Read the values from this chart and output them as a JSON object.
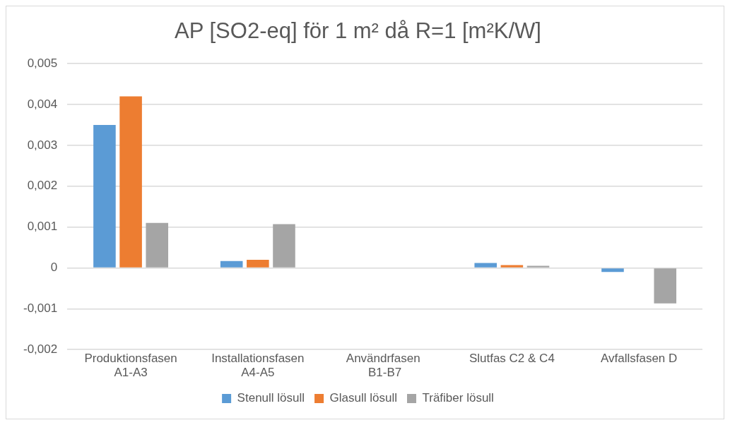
{
  "chart_data": {
    "type": "bar",
    "title": "AP [SO2-eq] för 1 m² då R=1 [m²K/W]",
    "categories": [
      "Produktionsfasen A1-A3",
      "Installationsfasen A4-A5",
      "Användrfasen  B1-B7",
      "Slutfas C2 & C4",
      "Avfallsfasen D"
    ],
    "series": [
      {
        "name": "Stenull lösull",
        "color": "#5b9bd5",
        "values": [
          0.0035,
          0.00017,
          0,
          0.00012,
          -0.0001
        ]
      },
      {
        "name": "Glasull lösull",
        "color": "#ed7d31",
        "values": [
          0.0042,
          0.0002,
          0,
          7e-05,
          0
        ]
      },
      {
        "name": "Träfiber lösull",
        "color": "#a5a5a5",
        "values": [
          0.0011,
          0.00107,
          0,
          5e-05,
          -0.00087
        ]
      }
    ],
    "ylim": [
      -0.002,
      0.005
    ],
    "yticks": [
      {
        "value": -0.002,
        "label": "-0,002"
      },
      {
        "value": -0.001,
        "label": "-0,001"
      },
      {
        "value": 0,
        "label": "0"
      },
      {
        "value": 0.001,
        "label": "0,001"
      },
      {
        "value": 0.002,
        "label": "0,002"
      },
      {
        "value": 0.003,
        "label": "0,003"
      },
      {
        "value": 0.004,
        "label": "0,004"
      },
      {
        "value": 0.005,
        "label": "0,005"
      }
    ],
    "grid": "y",
    "legend": "bottom"
  }
}
